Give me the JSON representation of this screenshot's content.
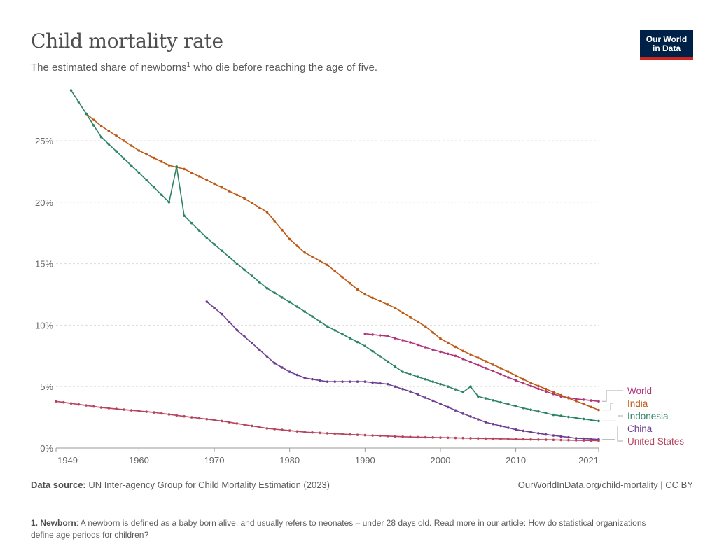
{
  "header": {
    "title": "Child mortality rate",
    "subtitle_pre": "The estimated share of newborns",
    "subtitle_sup": "1",
    "subtitle_post": " who die before reaching the age of five.",
    "logo_line1": "Our World",
    "logo_line2": "in Data"
  },
  "footer": {
    "source_label": "Data source:",
    "source_text": " UN Inter-agency Group for Child Mortality Estimation (2023)",
    "url_text": "OurWorldInData.org/child-mortality | CC BY",
    "footnote_label": "1. Newborn",
    "footnote_text": ": A newborn is defined as a baby born alive, and usually refers to neonates – under 28 days old. Read more in our article: How do statistical organizations define age periods for children?"
  },
  "colors": {
    "World": "#b13479",
    "India": "#be5915",
    "Indonesia": "#2c8465",
    "China": "#6d3e91",
    "United States": "#b7455f",
    "grid": "#dddddd",
    "axis": "#999999"
  },
  "chart_data": {
    "type": "line",
    "title": "Child mortality rate",
    "subtitle": "The estimated share of newborns who die before reaching the age of five.",
    "xlabel": "",
    "ylabel": "",
    "xlim": [
      1949,
      2021
    ],
    "ylim": [
      0,
      29
    ],
    "x_ticks": [
      "1949",
      "1960",
      "1970",
      "1980",
      "1990",
      "2000",
      "2010",
      "2021"
    ],
    "x_tick_values": [
      1949,
      1960,
      1970,
      1980,
      1990,
      2000,
      2010,
      2021
    ],
    "y_ticks": [
      "0%",
      "5%",
      "10%",
      "15%",
      "20%",
      "25%"
    ],
    "y_tick_values": [
      0,
      5,
      10,
      15,
      20,
      25
    ],
    "grid": "horizontal dotted",
    "legend": "right, inline labels at line ends",
    "series": [
      {
        "name": "World",
        "x": [
          1990,
          1993,
          1996,
          1999,
          2002,
          2006,
          2010,
          2014,
          2016,
          2018,
          2021
        ],
        "y": [
          9.3,
          9.1,
          8.6,
          8.0,
          7.5,
          6.5,
          5.5,
          4.6,
          4.2,
          4.0,
          3.8
        ]
      },
      {
        "name": "India",
        "x": [
          1953,
          1955,
          1958,
          1960,
          1964,
          1966,
          1969,
          1971,
          1974,
          1977,
          1980,
          1982,
          1985,
          1989,
          1990,
          1994,
          1998,
          2000,
          2003,
          2008,
          2012,
          2016,
          2021
        ],
        "y": [
          27.2,
          26.2,
          25.0,
          24.2,
          23.0,
          22.7,
          21.8,
          21.2,
          20.3,
          19.2,
          17.0,
          15.9,
          14.9,
          12.9,
          12.5,
          11.4,
          9.9,
          8.9,
          7.9,
          6.5,
          5.3,
          4.3,
          3.1
        ]
      },
      {
        "name": "Indonesia",
        "x": [
          1951,
          1955,
          1960,
          1964,
          1965,
          1966,
          1969,
          1973,
          1977,
          1981,
          1985,
          1990,
          1995,
          2001,
          2003,
          2004,
          2005,
          2010,
          2015,
          2021
        ],
        "y": [
          29.1,
          25.3,
          22.4,
          20.0,
          22.9,
          18.9,
          17.1,
          15.0,
          13.0,
          11.5,
          9.9,
          8.3,
          6.2,
          5.0,
          4.55,
          5.0,
          4.2,
          3.4,
          2.7,
          2.2
        ]
      },
      {
        "name": "China",
        "x": [
          1969,
          1971,
          1973,
          1976,
          1978,
          1980,
          1982,
          1985,
          1988,
          1990,
          1993,
          1996,
          2000,
          2003,
          2006,
          2010,
          2014,
          2018,
          2021
        ],
        "y": [
          11.9,
          10.9,
          9.6,
          8.0,
          6.9,
          6.2,
          5.7,
          5.4,
          5.4,
          5.4,
          5.2,
          4.6,
          3.6,
          2.8,
          2.1,
          1.5,
          1.1,
          0.8,
          0.7
        ]
      },
      {
        "name": "United States",
        "x": [
          1949,
          1955,
          1962,
          1967,
          1971,
          1977,
          1982,
          1988,
          1996,
          2004,
          2012,
          2021
        ],
        "y": [
          3.8,
          3.3,
          2.9,
          2.5,
          2.2,
          1.6,
          1.3,
          1.1,
          0.9,
          0.8,
          0.7,
          0.6
        ]
      }
    ]
  }
}
